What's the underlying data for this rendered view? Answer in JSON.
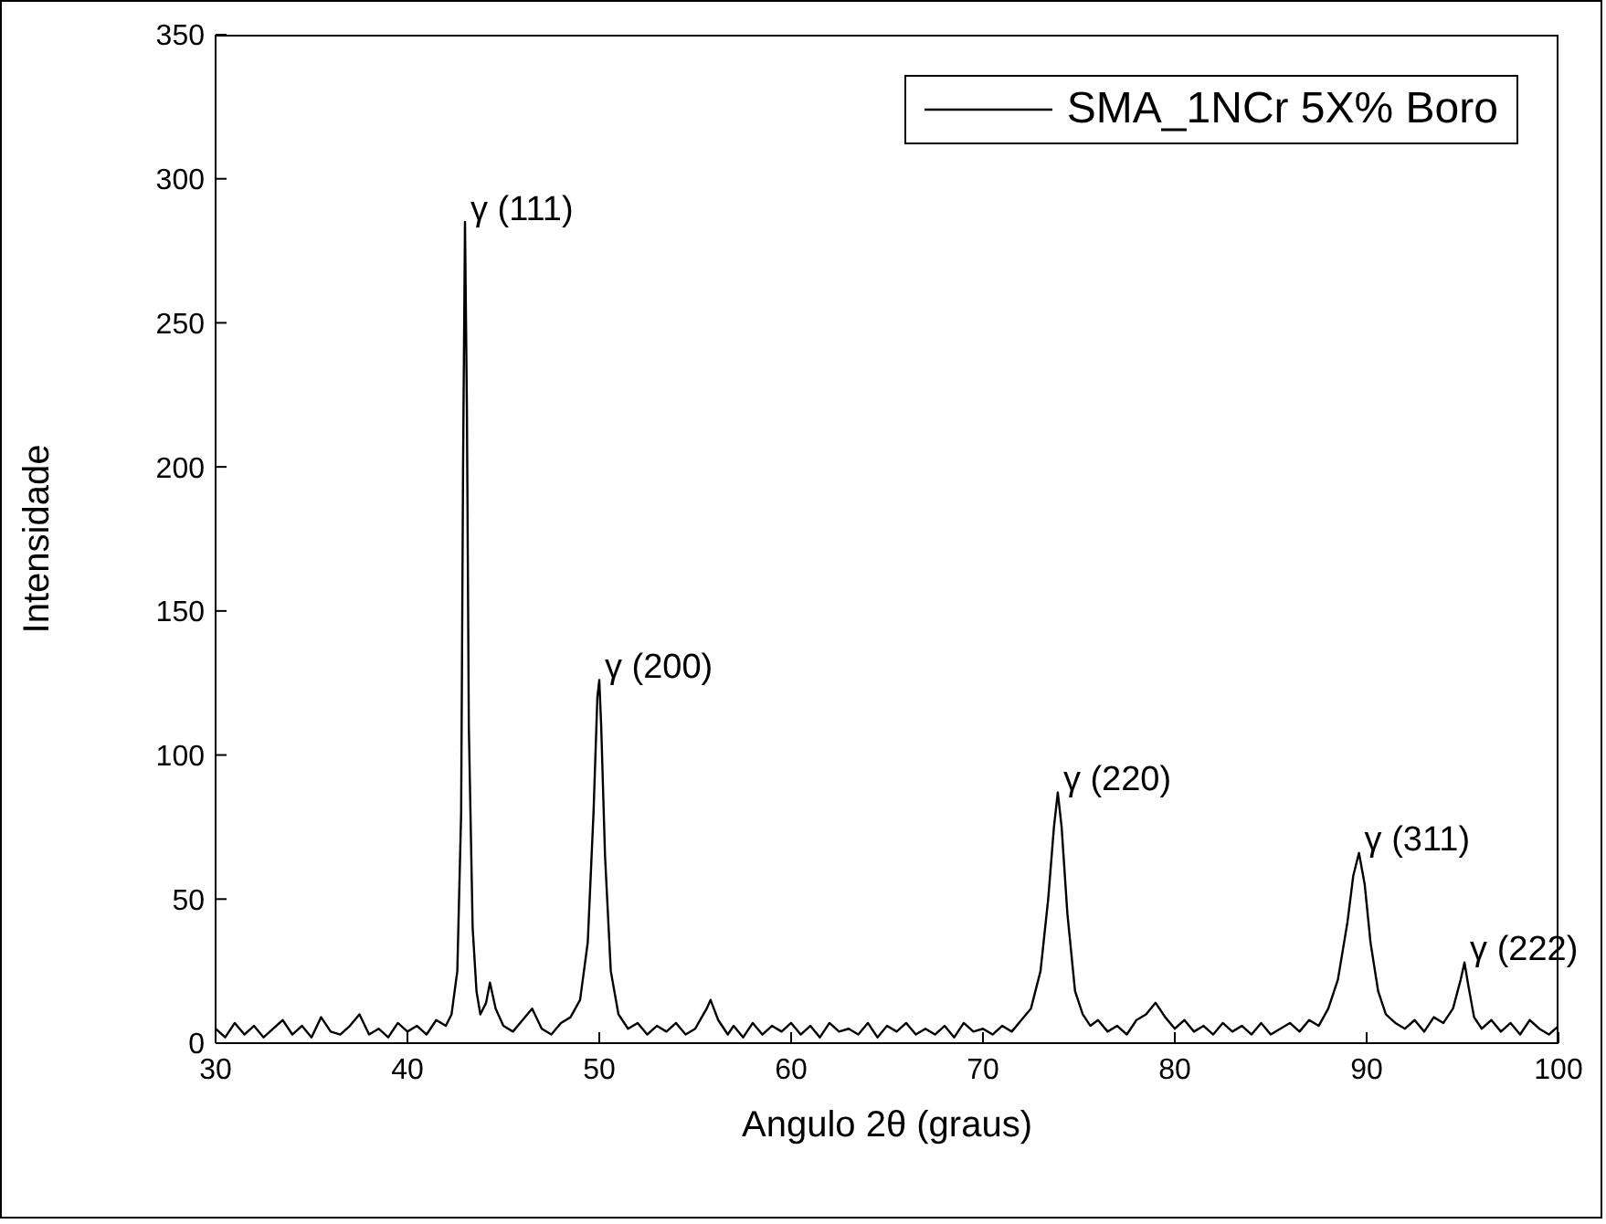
{
  "chart_data": {
    "type": "line",
    "xlabel": "Angulo 2θ (graus)",
    "ylabel": "Intensidade",
    "xlim": [
      30,
      100
    ],
    "xticks": [
      30,
      40,
      50,
      60,
      70,
      80,
      90,
      100
    ],
    "ylim": [
      0,
      350
    ],
    "yticks": [
      0,
      50,
      100,
      150,
      200,
      250,
      300,
      350
    ],
    "legend": "top right",
    "marker": "none",
    "line_style": "solid",
    "annotations": [
      {
        "text": "γ (111)",
        "x": 43,
        "y": 285
      },
      {
        "text": "γ (200)",
        "x": 50,
        "y": 126
      },
      {
        "text": "γ (220)",
        "x": 73.9,
        "y": 87
      },
      {
        "text": "γ (311)",
        "x": 89.6,
        "y": 66
      },
      {
        "text": "γ (222)",
        "x": 95.1,
        "y": 28
      }
    ],
    "x": [
      30,
      30.5,
      31,
      31.5,
      32,
      32.5,
      33,
      33.5,
      34,
      34.5,
      35,
      35.5,
      36,
      36.5,
      37,
      37.5,
      38,
      38.5,
      39,
      39.5,
      40,
      40.5,
      41,
      41.5,
      42,
      42.3,
      42.6,
      42.8,
      42.9,
      43.0,
      43.1,
      43.2,
      43.4,
      43.6,
      43.8,
      44.1,
      44.3,
      44.6,
      45,
      45.5,
      46,
      46.5,
      47,
      47.5,
      48,
      48.5,
      49,
      49.4,
      49.7,
      49.9,
      50.0,
      50.1,
      50.3,
      50.6,
      51,
      51.5,
      52,
      52.5,
      53,
      53.5,
      54,
      54.5,
      55,
      55.6,
      55.8,
      56.2,
      56.7,
      57,
      57.5,
      58,
      58.5,
      59,
      59.5,
      60,
      60.5,
      61,
      61.5,
      62,
      62.5,
      63,
      63.5,
      64,
      64.5,
      65,
      65.5,
      66,
      66.5,
      67,
      67.5,
      68,
      68.5,
      69,
      69.5,
      70,
      70.5,
      71,
      71.5,
      72,
      72.5,
      73,
      73.4,
      73.7,
      73.9,
      74.1,
      74.4,
      74.8,
      75.2,
      75.6,
      76,
      76.5,
      77,
      77.5,
      78,
      78.5,
      79,
      79.5,
      80,
      80.5,
      81,
      81.5,
      82,
      82.5,
      83,
      83.5,
      84,
      84.5,
      85,
      85.5,
      86,
      86.5,
      87,
      87.5,
      88,
      88.5,
      89,
      89.3,
      89.6,
      89.9,
      90.2,
      90.6,
      91,
      91.5,
      92,
      92.5,
      93,
      93.5,
      94,
      94.5,
      94.9,
      95.1,
      95.3,
      95.6,
      96,
      96.5,
      97,
      97.5,
      98,
      98.5,
      99,
      99.5,
      100
    ],
    "series": [
      {
        "name": "SMA_1NCr 5X% Boro",
        "color": "#000000",
        "values": [
          5,
          2,
          7,
          3,
          6,
          2,
          5,
          8,
          3,
          6,
          2,
          9,
          4,
          3,
          6,
          10,
          3,
          5,
          2,
          7,
          4,
          6,
          3,
          8,
          6,
          10,
          25,
          80,
          200,
          285,
          220,
          110,
          40,
          18,
          10,
          14,
          21,
          12,
          6,
          4,
          8,
          12,
          5,
          3,
          7,
          9,
          15,
          35,
          80,
          120,
          126,
          110,
          65,
          25,
          10,
          5,
          7,
          3,
          6,
          4,
          7,
          3,
          5,
          12,
          15,
          8,
          3,
          6,
          2,
          7,
          3,
          6,
          4,
          7,
          3,
          6,
          2,
          7,
          4,
          5,
          3,
          7,
          2,
          6,
          4,
          7,
          3,
          5,
          3,
          6,
          2,
          7,
          4,
          5,
          3,
          6,
          4,
          8,
          12,
          25,
          50,
          75,
          87,
          75,
          45,
          18,
          10,
          6,
          8,
          4,
          6,
          3,
          8,
          10,
          14,
          9,
          5,
          8,
          4,
          6,
          3,
          7,
          4,
          6,
          3,
          7,
          3,
          5,
          7,
          4,
          8,
          6,
          12,
          22,
          42,
          58,
          66,
          55,
          35,
          18,
          10,
          7,
          5,
          8,
          4,
          9,
          7,
          12,
          22,
          28,
          20,
          9,
          5,
          8,
          4,
          7,
          3,
          8,
          5,
          3,
          6
        ]
      }
    ]
  }
}
